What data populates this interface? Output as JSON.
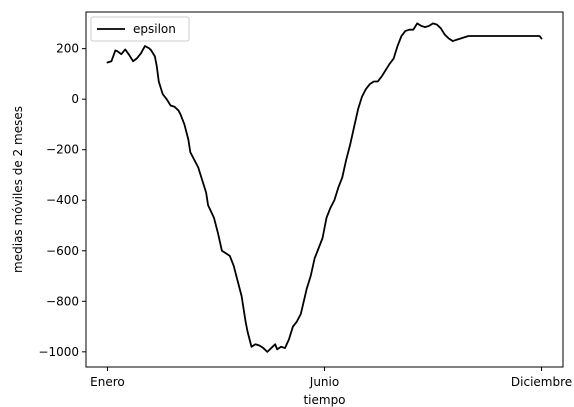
{
  "chart_data": {
    "type": "line",
    "title": "",
    "xlabel": "tiempo",
    "ylabel": "medias móviles de 2 meses",
    "xlim": [
      0,
      11
    ],
    "ylim": [
      -1060,
      345
    ],
    "x_ticks": [
      {
        "value": 0,
        "label": "Enero"
      },
      {
        "value": 5.5,
        "label": "Junio"
      },
      {
        "value": 11,
        "label": "Diciembre"
      }
    ],
    "y_ticks": [
      {
        "value": 200,
        "label": "200"
      },
      {
        "value": 0,
        "label": "0"
      },
      {
        "value": -200,
        "label": "−200"
      },
      {
        "value": -400,
        "label": "−400"
      },
      {
        "value": -600,
        "label": "−600"
      },
      {
        "value": -800,
        "label": "−800"
      },
      {
        "value": -1000,
        "label": "−1000"
      }
    ],
    "legend": {
      "position": "top-left"
    },
    "grid": false,
    "series": [
      {
        "name": "epsilon",
        "color": "#000000",
        "x": [
          0.0,
          0.1,
          0.2,
          0.25,
          0.35,
          0.45,
          0.55,
          0.65,
          0.75,
          0.85,
          0.95,
          1.05,
          1.1,
          1.2,
          1.25,
          1.3,
          1.4,
          1.5,
          1.6,
          1.7,
          1.8,
          1.85,
          1.95,
          2.05,
          2.1,
          2.2,
          2.3,
          2.4,
          2.5,
          2.55,
          2.7,
          2.8,
          2.9,
          3.0,
          3.1,
          3.2,
          3.3,
          3.4,
          3.5,
          3.55,
          3.65,
          3.75,
          3.85,
          3.95,
          4.05,
          4.15,
          4.25,
          4.3,
          4.4,
          4.5,
          4.6,
          4.7,
          4.8,
          4.9,
          5.05,
          5.15,
          5.25,
          5.35,
          5.45,
          5.55,
          5.65,
          5.75,
          5.85,
          5.95,
          6.05,
          6.15,
          6.25,
          6.35,
          6.45,
          6.55,
          6.65,
          6.75,
          6.85,
          6.95,
          7.05,
          7.15,
          7.25,
          7.35,
          7.45,
          7.55,
          7.65,
          7.75,
          7.85,
          7.95,
          8.05,
          8.15,
          8.25,
          8.35,
          8.45,
          8.55,
          8.65,
          8.75,
          8.85,
          8.95,
          9.05,
          9.15,
          9.25,
          9.35,
          9.45,
          9.55,
          9.65,
          9.75,
          9.85,
          9.95,
          10.05,
          10.15,
          10.25,
          10.35,
          10.45,
          10.55,
          10.65,
          10.75,
          10.85,
          10.95,
          11.0
        ],
        "values": [
          145,
          150,
          193,
          190,
          178,
          197,
          175,
          150,
          162,
          182,
          210,
          202,
          195,
          170,
          130,
          70,
          20,
          0,
          -25,
          -30,
          -45,
          -60,
          -100,
          -160,
          -210,
          -240,
          -270,
          -320,
          -370,
          -420,
          -470,
          -530,
          -600,
          -610,
          -620,
          -660,
          -720,
          -780,
          -880,
          -920,
          -980,
          -970,
          -975,
          -985,
          -1000,
          -985,
          -970,
          -990,
          -980,
          -985,
          -950,
          -900,
          -880,
          -850,
          -750,
          -700,
          -630,
          -590,
          -550,
          -470,
          -430,
          -400,
          -350,
          -310,
          -240,
          -180,
          -110,
          -40,
          10,
          40,
          60,
          70,
          70,
          90,
          115,
          140,
          160,
          210,
          250,
          270,
          275,
          275,
          300,
          290,
          285,
          290,
          300,
          295,
          280,
          255,
          240,
          230,
          235,
          240,
          245,
          250,
          250,
          250,
          250,
          250,
          250,
          250,
          250,
          250,
          250,
          250,
          250,
          250,
          250,
          250,
          250,
          250,
          250,
          250,
          240
        ]
      }
    ]
  }
}
